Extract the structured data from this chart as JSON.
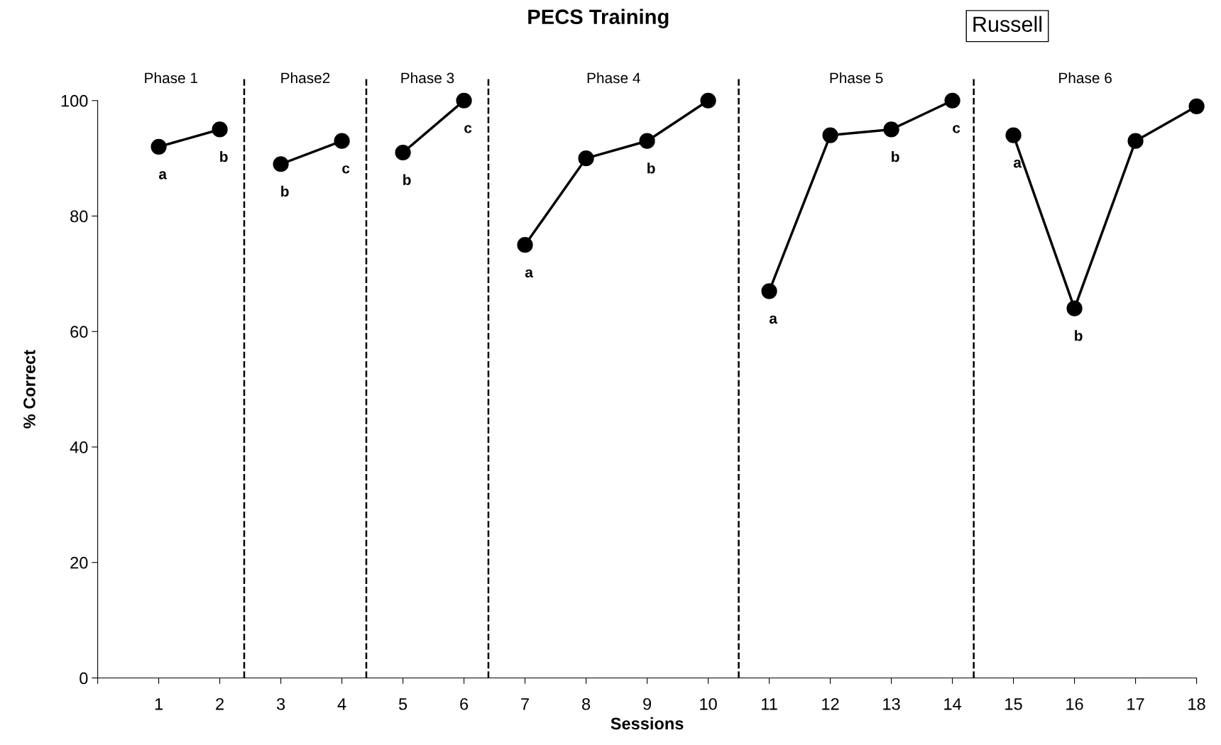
{
  "chart_data": {
    "type": "line",
    "title": "PECS Training",
    "xlabel": "Sessions",
    "ylabel": "% Correct",
    "series": [
      {
        "color": "#000000",
        "x": [
          1,
          2
        ],
        "values": [
          92,
          95
        ]
      },
      {
        "color": "#000000",
        "x": [
          3,
          4
        ],
        "values": [
          89,
          93
        ]
      },
      {
        "color": "#000000",
        "x": [
          5,
          6
        ],
        "values": [
          91,
          100
        ]
      },
      {
        "color": "#000000",
        "x": [
          7,
          8,
          9,
          10
        ],
        "values": [
          75,
          90,
          93,
          100
        ]
      },
      {
        "color": "#000000",
        "x": [
          11,
          12,
          13,
          14
        ],
        "values": [
          67,
          94,
          95,
          100
        ]
      },
      {
        "color": "#000000",
        "x": [
          15,
          16,
          17,
          18
        ],
        "values": [
          94,
          64,
          93,
          99
        ]
      }
    ],
    "marker": "circle",
    "line_style": "solid",
    "grid": false,
    "legend": false,
    "xlim": [
      0,
      18
    ],
    "xticks": [
      {
        "value": 0,
        "label": null
      },
      1,
      2,
      3,
      4,
      5,
      6,
      7,
      8,
      9,
      10,
      11,
      12,
      13,
      14,
      15,
      16,
      17,
      18
    ],
    "ylim": [
      0,
      100
    ],
    "yticks": [
      0,
      20,
      40,
      60,
      80,
      100
    ],
    "ref_lines": [
      {
        "axis": "x",
        "value": 2.4,
        "line_style": "dashed",
        "color": "#000000"
      },
      {
        "axis": "x",
        "value": 4.4,
        "line_style": "dashed",
        "color": "#000000"
      },
      {
        "axis": "x",
        "value": 6.4,
        "line_style": "dashed",
        "color": "#000000"
      },
      {
        "axis": "x",
        "value": 10.5,
        "line_style": "dashed",
        "color": "#000000"
      },
      {
        "axis": "x",
        "value": 14.35,
        "line_style": "dashed",
        "color": "#000000"
      }
    ],
    "annotations": [
      "Phase 1",
      "Phase2",
      "Phase 3",
      "Phase 4",
      "Phase 5",
      "Phase 6",
      "Russell",
      {
        "text": "a",
        "x": 1,
        "y": 92
      },
      {
        "text": "b",
        "x": 2,
        "y": 95
      },
      {
        "text": "b",
        "x": 3,
        "y": 89
      },
      {
        "text": "c",
        "x": 4,
        "y": 93
      },
      {
        "text": "b",
        "x": 5,
        "y": 91
      },
      {
        "text": "c",
        "x": 6,
        "y": 100
      },
      {
        "text": "a",
        "x": 7,
        "y": 75
      },
      {
        "text": "b",
        "x": 9,
        "y": 93
      },
      {
        "text": "a",
        "x": 11,
        "y": 67
      },
      {
        "text": "b",
        "x": 13,
        "y": 95
      },
      {
        "text": "c",
        "x": 14,
        "y": 100
      },
      {
        "text": "a",
        "x": 15,
        "y": 94
      },
      {
        "text": "b",
        "x": 16,
        "y": 64
      }
    ]
  }
}
